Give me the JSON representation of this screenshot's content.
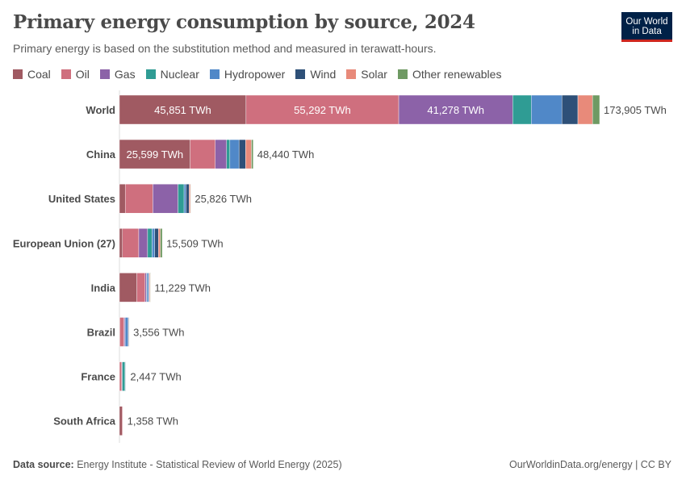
{
  "header": {
    "title": "Primary energy consumption by source, 2024",
    "subtitle": "Primary energy is based on the substitution method and measured in terawatt-hours.",
    "logo": "Our World in Data"
  },
  "footer": {
    "source_label": "Data source:",
    "source": "Energy Institute - Statistical Review of World Energy (2025)",
    "credit": "OurWorldinData.org/energy | CC BY"
  },
  "chart_data": {
    "type": "bar",
    "orientation": "horizontal",
    "stacked": true,
    "title": "Primary energy consumption by source, 2024",
    "unit": "TWh",
    "legend_position": "top",
    "categories": [
      "World",
      "China",
      "United States",
      "European Union (27)",
      "India",
      "Brazil",
      "France",
      "South Africa"
    ],
    "totals": [
      "173,905 TWh",
      "48,440 TWh",
      "25,826 TWh",
      "15,509 TWh",
      "11,229 TWh",
      "3,556 TWh",
      "2,447 TWh",
      "1,358 TWh"
    ],
    "series": [
      {
        "name": "Coal",
        "color": "#a05a62",
        "values": [
          45851,
          25599,
          2100,
          1100,
          6300,
          130,
          20,
          1000
        ]
      },
      {
        "name": "Oil",
        "color": "#cf6f7e",
        "values": [
          55292,
          9100,
          10000,
          5900,
          3000,
          1500,
          800,
          260
        ]
      },
      {
        "name": "Gas",
        "color": "#8c62a8",
        "values": [
          41278,
          4100,
          9100,
          3200,
          500,
          400,
          200,
          40
        ]
      },
      {
        "name": "Nuclear",
        "color": "#2f9c94",
        "values": [
          6700,
          1200,
          2200,
          1600,
          150,
          40,
          1000,
          30
        ]
      },
      {
        "name": "Hydropower",
        "color": "#5088c8",
        "values": [
          11100,
          3300,
          700,
          1000,
          600,
          1100,
          170,
          5
        ]
      },
      {
        "name": "Wind",
        "color": "#2e5078",
        "values": [
          5800,
          2400,
          1100,
          1300,
          250,
          200,
          130,
          20
        ]
      },
      {
        "name": "Solar",
        "color": "#e88a7a",
        "values": [
          5300,
          2100,
          500,
          700,
          300,
          150,
          60,
          3
        ]
      },
      {
        "name": "Other renewables",
        "color": "#6f9a63",
        "values": [
          2584,
          641,
          126,
          709,
          129,
          36,
          67,
          0
        ]
      }
    ],
    "segment_labels": [
      [
        "45,851 TWh",
        "55,292 TWh",
        "41,278 TWh"
      ],
      [
        "25,599 TWh"
      ],
      [],
      [],
      [],
      [],
      [],
      []
    ],
    "xlim": [
      0,
      173905
    ],
    "grid": false
  }
}
